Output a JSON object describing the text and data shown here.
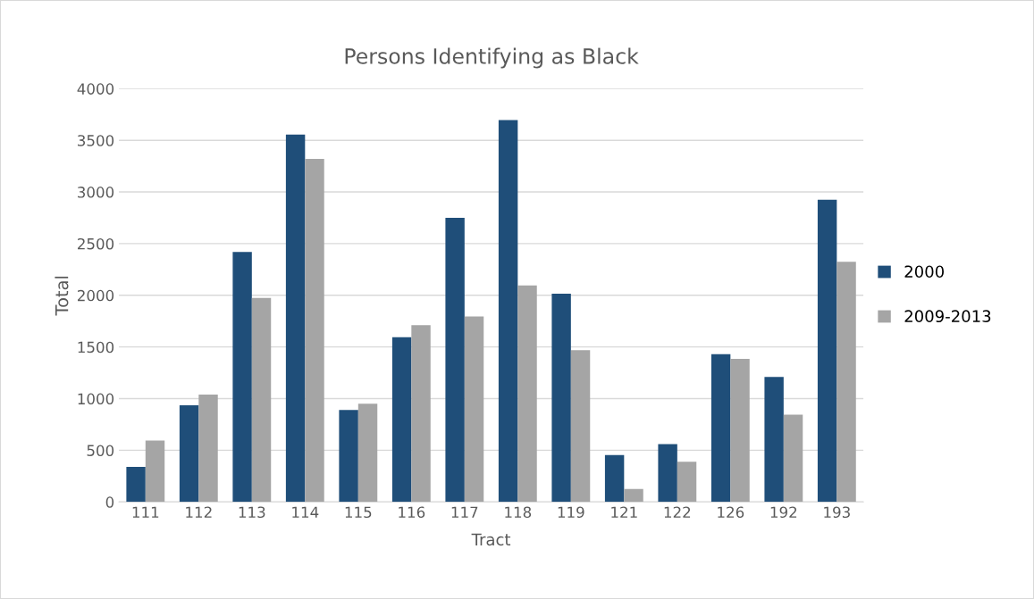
{
  "chart_data": {
    "type": "bar",
    "title": "Persons Identifying as Black",
    "xlabel": "Tract",
    "ylabel": "Total",
    "categories": [
      "111",
      "112",
      "113",
      "114",
      "115",
      "116",
      "117",
      "118",
      "119",
      "121",
      "122",
      "126",
      "192",
      "193"
    ],
    "series": [
      {
        "name": "2000",
        "color": "#1f4e79",
        "values": [
          340,
          935,
          2420,
          3555,
          890,
          1595,
          2750,
          3695,
          2015,
          455,
          560,
          1430,
          1210,
          2925
        ]
      },
      {
        "name": "2009-2013",
        "color": "#a5a5a5",
        "values": [
          595,
          1040,
          1975,
          3320,
          950,
          1710,
          1795,
          2095,
          1470,
          125,
          390,
          1385,
          845,
          2325
        ]
      }
    ],
    "ylim": [
      0,
      4000
    ],
    "yticks": [
      0,
      500,
      1000,
      1500,
      2000,
      2500,
      3000,
      3500,
      4000
    ],
    "grid": "y",
    "legend": "right"
  }
}
